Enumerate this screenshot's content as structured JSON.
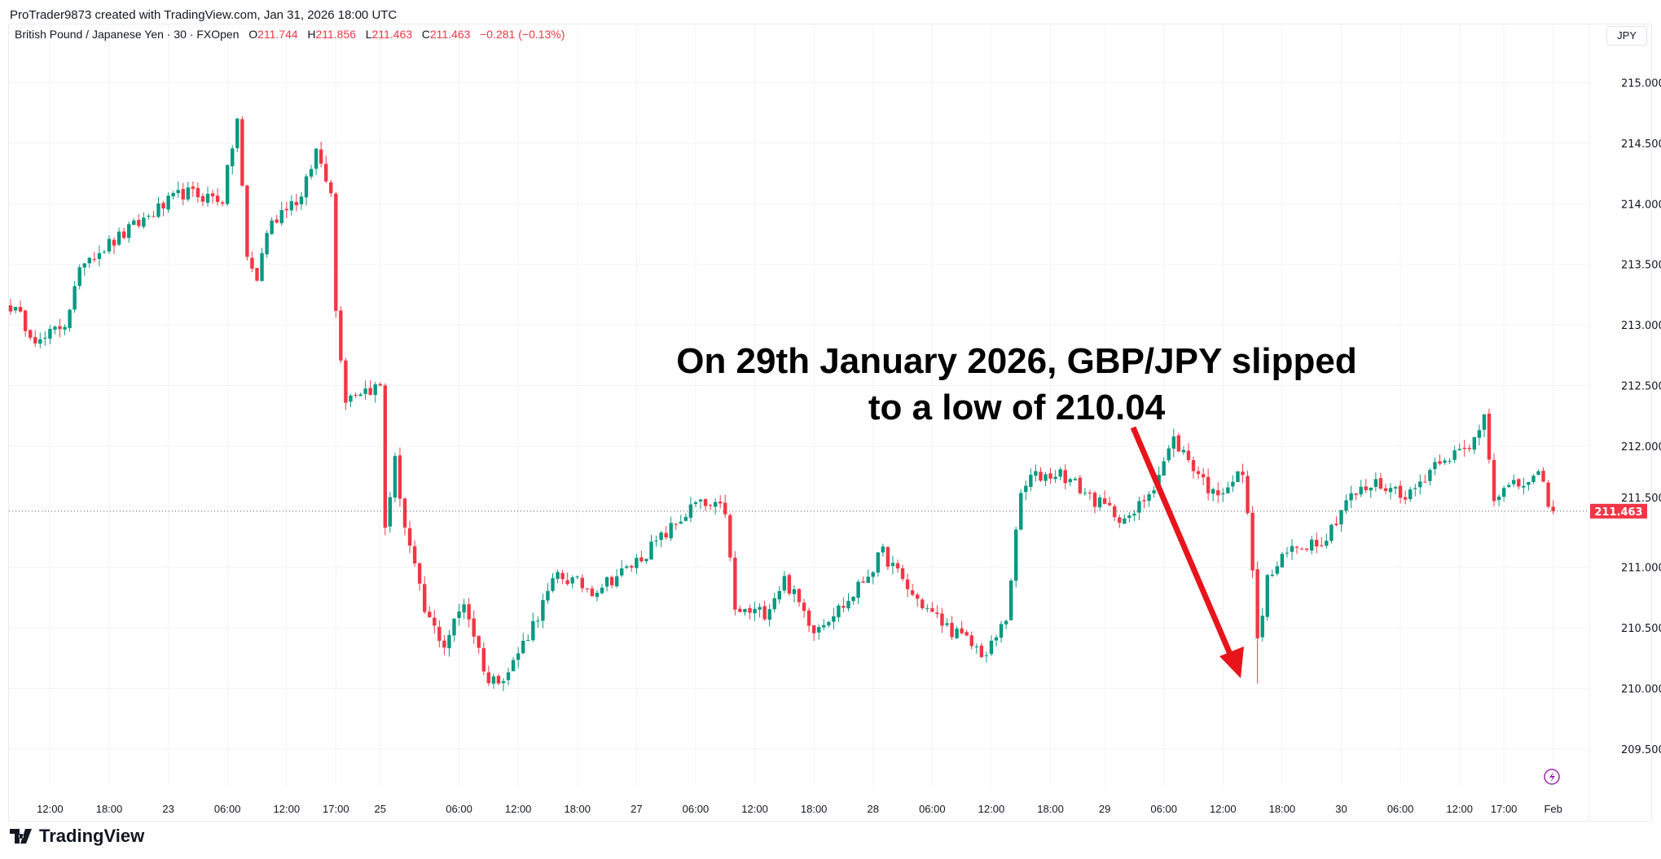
{
  "header": {
    "credit": "ProTrader9873 created with TradingView.com, Jan 31, 2026 18:00 UTC"
  },
  "legend": {
    "symbol": "British Pound / Japanese Yen · 30 · FXOpen",
    "o_label": "O",
    "o": "211.744",
    "h_label": "H",
    "h": "211.856",
    "l_label": "L",
    "l": "211.463",
    "c_label": "C",
    "c": "211.463",
    "change": "−0.281 (−0.13%)"
  },
  "currency_button": "JPY",
  "logo": "TradingView",
  "colors": {
    "up": "#089981",
    "down": "#f23645",
    "arrow": "#e8141c",
    "flash": "#9c27b0"
  },
  "chart_data": {
    "type": "candlestick",
    "title": "British Pound / Japanese Yen · 30 · FXOpen",
    "candle_count": 314,
    "close_path": [
      [
        0,
        213.16
      ],
      [
        6,
        212.85
      ],
      [
        11,
        213.02
      ],
      [
        15,
        213.55
      ],
      [
        21,
        213.69
      ],
      [
        28,
        213.9
      ],
      [
        35,
        214.09
      ],
      [
        43,
        214.04
      ],
      [
        46,
        214.7
      ],
      [
        48,
        213.55
      ],
      [
        50,
        213.38
      ],
      [
        52,
        213.78
      ],
      [
        56,
        214.0
      ],
      [
        59,
        214.04
      ],
      [
        62,
        214.44
      ],
      [
        65,
        214.13
      ],
      [
        66,
        213.11
      ],
      [
        68,
        212.4
      ],
      [
        70,
        212.45
      ],
      [
        75,
        212.49
      ],
      [
        76,
        211.34
      ],
      [
        78,
        211.87
      ],
      [
        80,
        211.34
      ],
      [
        84,
        210.63
      ],
      [
        88,
        210.36
      ],
      [
        92,
        210.72
      ],
      [
        97,
        210.05
      ],
      [
        101,
        210.14
      ],
      [
        105,
        210.45
      ],
      [
        111,
        210.94
      ],
      [
        118,
        210.81
      ],
      [
        125,
        210.98
      ],
      [
        131,
        211.2
      ],
      [
        139,
        211.52
      ],
      [
        145,
        211.47
      ],
      [
        147,
        210.63
      ],
      [
        153,
        210.63
      ],
      [
        157,
        210.9
      ],
      [
        163,
        210.5
      ],
      [
        170,
        210.72
      ],
      [
        177,
        211.12
      ],
      [
        183,
        210.77
      ],
      [
        189,
        210.54
      ],
      [
        198,
        210.27
      ],
      [
        202,
        210.58
      ],
      [
        205,
        211.6
      ],
      [
        207,
        211.74
      ],
      [
        213,
        211.78
      ],
      [
        221,
        211.52
      ],
      [
        227,
        211.38
      ],
      [
        232,
        211.69
      ],
      [
        236,
        212.05
      ],
      [
        241,
        211.78
      ],
      [
        244,
        211.6
      ],
      [
        250,
        211.78
      ],
      [
        252,
        211.03
      ],
      [
        253,
        210.36
      ],
      [
        255,
        210.9
      ],
      [
        260,
        211.16
      ],
      [
        267,
        211.25
      ],
      [
        271,
        211.56
      ],
      [
        277,
        211.69
      ],
      [
        284,
        211.6
      ],
      [
        290,
        211.91
      ],
      [
        296,
        211.96
      ],
      [
        299,
        212.27
      ],
      [
        301,
        211.6
      ],
      [
        310,
        211.74
      ],
      [
        313,
        211.463
      ]
    ],
    "last_price": "211.463",
    "ylim": [
      209.2,
      215.3
    ],
    "y_ticks": [
      "215.000",
      "214.500",
      "214.000",
      "213.500",
      "213.000",
      "212.500",
      "212.000",
      "211.500",
      "211.000",
      "210.500",
      "210.000",
      "209.500"
    ],
    "x_ticks": [
      {
        "i": 8,
        "label": "12:00"
      },
      {
        "i": 20,
        "label": "18:00"
      },
      {
        "i": 32,
        "label": "23"
      },
      {
        "i": 44,
        "label": "06:00"
      },
      {
        "i": 56,
        "label": "12:00"
      },
      {
        "i": 66,
        "label": "17:00"
      },
      {
        "i": 75,
        "label": "25"
      },
      {
        "i": 91,
        "label": "06:00"
      },
      {
        "i": 103,
        "label": "12:00"
      },
      {
        "i": 115,
        "label": "18:00"
      },
      {
        "i": 127,
        "label": "27"
      },
      {
        "i": 139,
        "label": "06:00"
      },
      {
        "i": 151,
        "label": "12:00"
      },
      {
        "i": 163,
        "label": "18:00"
      },
      {
        "i": 175,
        "label": "28"
      },
      {
        "i": 187,
        "label": "06:00"
      },
      {
        "i": 199,
        "label": "12:00"
      },
      {
        "i": 211,
        "label": "18:00"
      },
      {
        "i": 222,
        "label": "29"
      },
      {
        "i": 234,
        "label": "06:00"
      },
      {
        "i": 246,
        "label": "12:00"
      },
      {
        "i": 258,
        "label": "18:00"
      },
      {
        "i": 270,
        "label": "30"
      },
      {
        "i": 282,
        "label": "06:00"
      },
      {
        "i": 294,
        "label": "12:00"
      },
      {
        "i": 303,
        "label": "17:00"
      },
      {
        "i": 313,
        "label": "Feb"
      }
    ],
    "annotation": {
      "line1": "On 29th January 2026, GBP/JPY slipped",
      "line2": "to a low of 210.04",
      "low_value": 210.04,
      "low_index": 253
    }
  }
}
